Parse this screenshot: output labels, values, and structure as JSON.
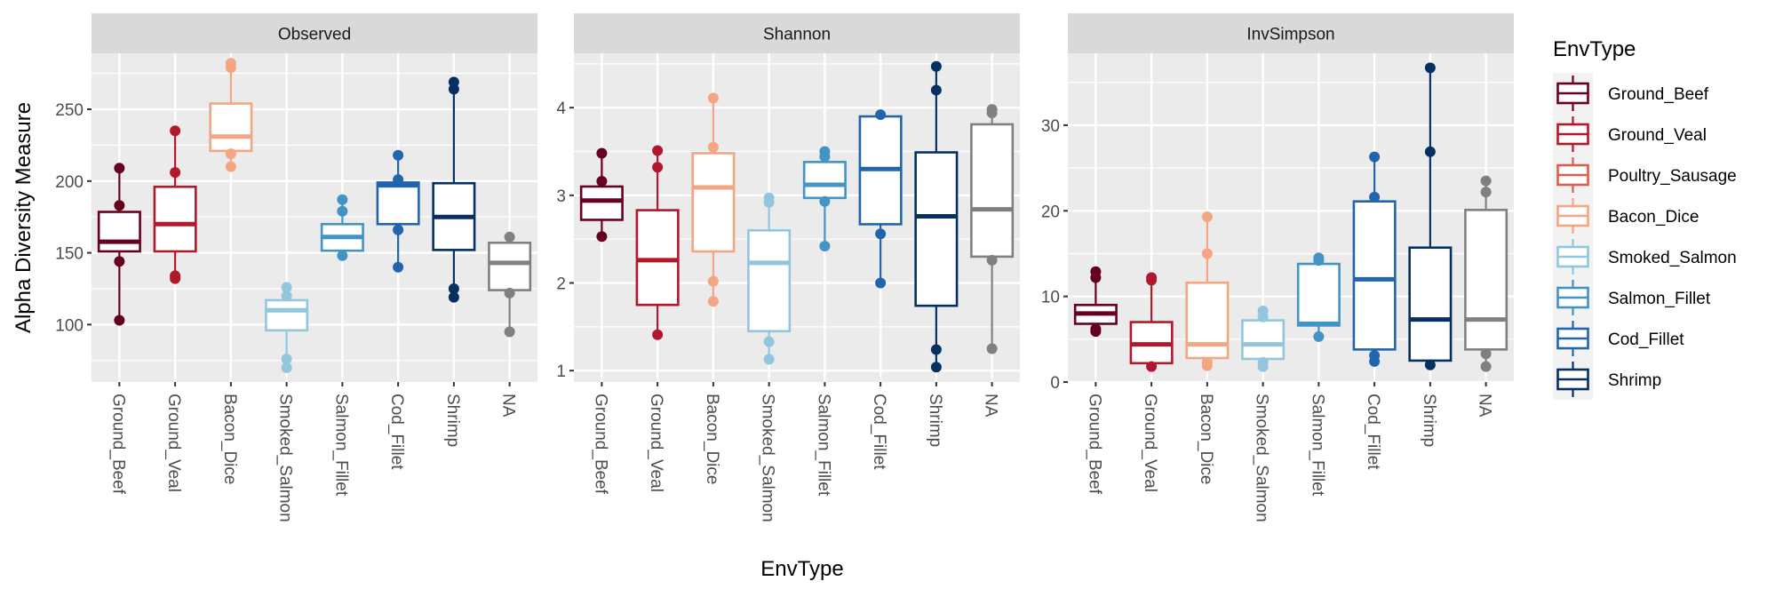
{
  "chart_data": {
    "type": "boxplot",
    "title": "",
    "xlabel": "EnvType",
    "ylabel": "Alpha Diversity Measure",
    "categories": [
      "Ground_Beef",
      "Ground_Veal",
      "Bacon_Dice",
      "Smoked_Salmon",
      "Salmon_Fillet",
      "Cod_Fillet",
      "Shrimp",
      "NA"
    ],
    "colors": {
      "Ground_Beef": "#67001F",
      "Ground_Veal": "#B2182B",
      "Poultry_Sausage": "#D6604D",
      "Bacon_Dice": "#F4A582",
      "Smoked_Salmon": "#92C5DE",
      "Salmon_Fillet": "#4393C3",
      "Cod_Fillet": "#2166AC",
      "Shrimp": "#053061",
      "NA": "#808080"
    },
    "legend": {
      "title": "EnvType",
      "position": "right",
      "entries": [
        "Ground_Beef",
        "Ground_Veal",
        "Poultry_Sausage",
        "Bacon_Dice",
        "Smoked_Salmon",
        "Salmon_Fillet",
        "Cod_Fillet",
        "Shrimp"
      ]
    },
    "panels": [
      {
        "facet": "Observed",
        "ylim": [
          60,
          289
        ],
        "yticks": [
          100,
          150,
          200,
          250
        ],
        "ygrid_minor": [
          75,
          125,
          175,
          225,
          275
        ],
        "boxes": [
          {
            "q1": 151,
            "median": 157.7,
            "q3": 178.5,
            "points": [
              209,
              183,
              144,
              103
            ]
          },
          {
            "q1": 151,
            "median": 170,
            "q3": 196,
            "points": [
              235,
              206,
              134,
              132
            ]
          },
          {
            "q1": 221,
            "median": 231,
            "q3": 254,
            "points": [
              282,
              279,
              219,
              210
            ]
          },
          {
            "q1": 96,
            "median": 110,
            "q3": 117,
            "points": [
              126,
              120,
              76,
              70
            ]
          },
          {
            "q1": 151.5,
            "median": 161,
            "q3": 170,
            "points": [
              187,
              179,
              148
            ]
          },
          {
            "q1": 170,
            "median": 197,
            "q3": 199,
            "points": [
              218,
              201,
              166,
              140
            ]
          },
          {
            "q1": 152,
            "median": 175,
            "q3": 198.5,
            "points": [
              269,
              264,
              125,
              119
            ]
          },
          {
            "q1": 124,
            "median": 143,
            "q3": 157,
            "points": [
              161,
              122,
              95
            ]
          }
        ]
      },
      {
        "facet": "Shannon",
        "ylim": [
          0.87,
          4.62
        ],
        "yticks": [
          1,
          2,
          3,
          4
        ],
        "ygrid_minor": [
          1.5,
          2.5,
          3.5,
          4.5
        ],
        "boxes": [
          {
            "q1": 2.72,
            "median": 2.94,
            "q3": 3.1,
            "points": [
              3.48,
              3.16,
              2.53
            ]
          },
          {
            "q1": 1.75,
            "median": 2.26,
            "q3": 2.83,
            "points": [
              3.51,
              3.32,
              1.41
            ]
          },
          {
            "q1": 2.36,
            "median": 3.09,
            "q3": 3.48,
            "points": [
              4.11,
              3.55,
              2.02,
              1.79
            ]
          },
          {
            "q1": 1.45,
            "median": 2.23,
            "q3": 2.6,
            "points": [
              2.97,
              2.92,
              1.33,
              1.13
            ]
          },
          {
            "q1": 2.97,
            "median": 3.12,
            "q3": 3.38,
            "points": [
              3.5,
              3.44,
              2.93,
              2.42
            ]
          },
          {
            "q1": 2.67,
            "median": 3.3,
            "q3": 3.9,
            "points": [
              3.92,
              2.56,
              2.0
            ]
          },
          {
            "q1": 1.74,
            "median": 2.76,
            "q3": 3.49,
            "points": [
              4.47,
              4.2,
              1.24,
              1.04
            ]
          },
          {
            "q1": 2.3,
            "median": 2.84,
            "q3": 3.81,
            "points": [
              3.98,
              3.94,
              2.26,
              1.25
            ]
          }
        ]
      },
      {
        "facet": "InvSimpson",
        "ylim": [
          0,
          38.4
        ],
        "yticks": [
          0,
          10,
          20,
          30
        ],
        "ygrid_minor": [
          5,
          15,
          25,
          35
        ],
        "boxes": [
          {
            "q1": 6.8,
            "median": 8.0,
            "q3": 9.0,
            "points": [
              12.9,
              12.2,
              6.2,
              5.9
            ]
          },
          {
            "q1": 2.2,
            "median": 4.4,
            "q3": 7.0,
            "points": [
              12.2,
              11.9,
              1.8
            ]
          },
          {
            "q1": 2.8,
            "median": 4.4,
            "q3": 11.6,
            "points": [
              19.3,
              15.0,
              2.3,
              1.9
            ]
          },
          {
            "q1": 2.7,
            "median": 4.4,
            "q3": 7.2,
            "points": [
              8.3,
              7.6,
              2.3,
              1.8
            ]
          },
          {
            "q1": 6.6,
            "median": 6.8,
            "q3": 13.8,
            "points": [
              14.5,
              14.2,
              5.3
            ]
          },
          {
            "q1": 3.8,
            "median": 12.0,
            "q3": 21.1,
            "points": [
              26.3,
              21.6,
              3.1,
              2.4
            ]
          },
          {
            "q1": 2.5,
            "median": 7.3,
            "q3": 15.7,
            "points": [
              36.7,
              26.9,
              2.0
            ]
          },
          {
            "q1": 3.8,
            "median": 7.3,
            "q3": 20.1,
            "points": [
              23.5,
              22.2,
              3.3,
              1.8
            ]
          }
        ]
      }
    ]
  }
}
